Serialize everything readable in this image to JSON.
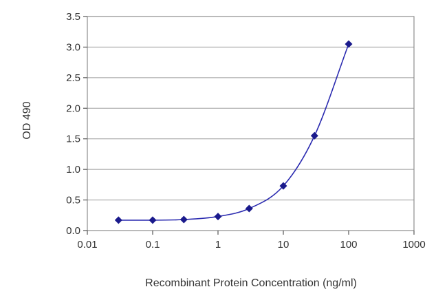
{
  "chart_data": {
    "type": "scatter",
    "title": "",
    "xlabel": "Recombinant Protein Concentration (ng/ml)",
    "ylabel": "OD 490",
    "x_scale": "log",
    "xlim": [
      0.01,
      1000
    ],
    "ylim": [
      0,
      3.5
    ],
    "x_ticks": [
      "0.01",
      "0.1",
      "1",
      "10",
      "100",
      "1000"
    ],
    "y_ticks": [
      "0.0",
      "0.5",
      "1.0",
      "1.5",
      "2.0",
      "2.5",
      "3.0",
      "3.5"
    ],
    "grid": "horizontal",
    "legend": "none",
    "series": [
      {
        "x": [
          0.03,
          0.1,
          0.3,
          1,
          3,
          10,
          30,
          100
        ],
        "y": [
          0.17,
          0.17,
          0.18,
          0.23,
          0.36,
          0.73,
          1.55,
          3.05
        ],
        "fit_curve": true
      }
    ],
    "colors": {
      "points": "#1a1a8c",
      "curve": "#2b2bb0",
      "grid": "#9a9a9a"
    }
  }
}
